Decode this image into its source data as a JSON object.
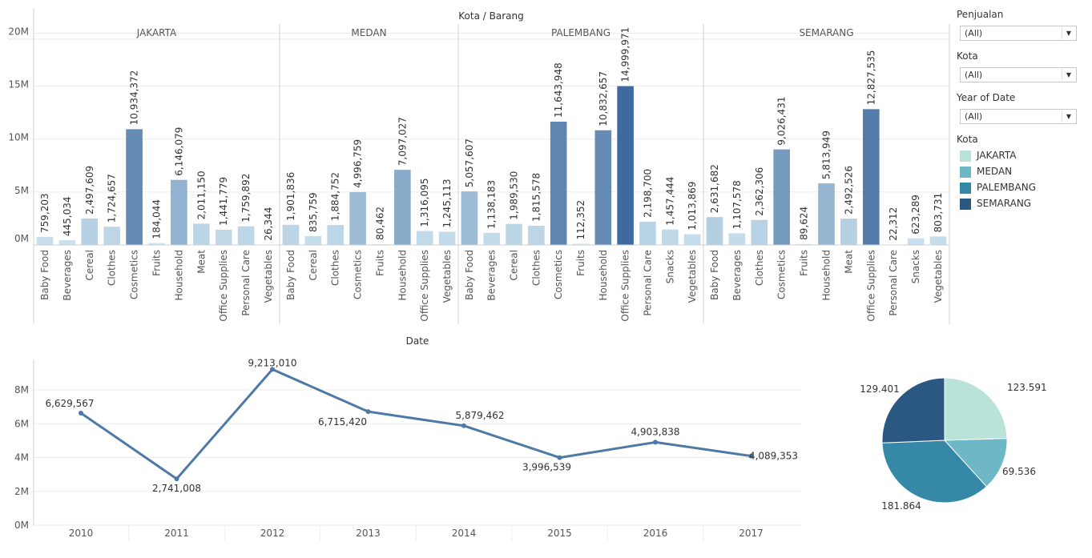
{
  "chart_data": [
    {
      "type": "bar",
      "title": "Kota / Barang",
      "ylim": [
        0,
        22000000
      ],
      "yticks": [
        "0M",
        "5M",
        "10M",
        "15M",
        "20M"
      ],
      "grid": true,
      "panels": [
        {
          "name": "JAKARTA",
          "categories": [
            "Baby Food",
            "Beverages",
            "Cereal",
            "Clothes",
            "Cosmetics",
            "Fruits",
            "Household",
            "Meat",
            "Office Supplies",
            "Personal Care",
            "Vegetables"
          ],
          "values": [
            759203,
            445034,
            2497609,
            1724657,
            10934372,
            184044,
            6146079,
            2011150,
            1441779,
            1759892,
            26344
          ],
          "labels": [
            "759,203",
            "445,034",
            "2,497,609",
            "1,724,657",
            "10,934,372",
            "184,044",
            "6,146,079",
            "2,011,150",
            "1,441,779",
            "1,759,892",
            "26,344"
          ]
        },
        {
          "name": "MEDAN",
          "categories": [
            "Baby Food",
            "Cereal",
            "Clothes",
            "Cosmetics",
            "Fruits",
            "Household",
            "Office Supplies",
            "Vegetables"
          ],
          "values": [
            1901836,
            835759,
            1884752,
            4996759,
            80462,
            7097027,
            1316095,
            1245113
          ],
          "labels": [
            "1,901,836",
            "835,759",
            "1,884,752",
            "4,996,759",
            "80,462",
            "7,097,027",
            "1,316,095",
            "1,245,113"
          ]
        },
        {
          "name": "PALEMBANG",
          "categories": [
            "Baby Food",
            "Beverages",
            "Cereal",
            "Clothes",
            "Cosmetics",
            "Fruits",
            "Household",
            "Office Supplies",
            "Personal Care",
            "Snacks",
            "Vegetables"
          ],
          "values": [
            5057607,
            1138183,
            1989530,
            1815578,
            11643948,
            112352,
            10832657,
            14999971,
            2198700,
            1457444,
            1013869
          ],
          "labels": [
            "5,057,607",
            "1,138,183",
            "1,989,530",
            "1,815,578",
            "11,643,948",
            "112,352",
            "10,832,657",
            "14,999,971",
            "2,198,700",
            "1,457,444",
            "1,013,869"
          ]
        },
        {
          "name": "SEMARANG",
          "categories": [
            "Baby Food",
            "Beverages",
            "Clothes",
            "Cosmetics",
            "Fruits",
            "Household",
            "Meat",
            "Office Supplies",
            "Personal Care",
            "Snacks",
            "Vegetables"
          ],
          "values": [
            2631682,
            1107578,
            2362306,
            9026431,
            89624,
            5813949,
            2492526,
            12827535,
            22312,
            623289,
            803731
          ],
          "labels": [
            "2,631,682",
            "1,107,578",
            "2,362,306",
            "9,026,431",
            "89,624",
            "5,813,949",
            "2,492,526",
            "12,827,535",
            "22,312",
            "623,289",
            "803,731"
          ]
        }
      ]
    },
    {
      "type": "line",
      "title": "Date",
      "x": [
        "2010",
        "2011",
        "2012",
        "2013",
        "2014",
        "2015",
        "2016",
        "2017"
      ],
      "values": [
        6629567,
        2741008,
        9213010,
        6715420,
        5879462,
        3996539,
        4903838,
        4089353
      ],
      "labels": [
        "6,629,567",
        "2,741,008",
        "9,213,010",
        "6,715,420",
        "5,879,462",
        "3,996,539",
        "4,903,838",
        "4,089,353"
      ],
      "ylim": [
        0,
        9800000
      ],
      "yticks": [
        "0M",
        "2M",
        "4M",
        "6M",
        "8M"
      ],
      "color": "#4e79a7"
    },
    {
      "type": "pie",
      "slices": [
        {
          "name": "JAKARTA",
          "value": 123.591,
          "label": "123.591"
        },
        {
          "name": "MEDAN",
          "value": 69.536,
          "label": "69.536"
        },
        {
          "name": "PALEMBANG",
          "value": 181.864,
          "label": "181.864"
        },
        {
          "name": "SEMARANG",
          "value": 129.401,
          "label": "129.401"
        }
      ]
    }
  ],
  "filters": [
    {
      "label": "Penjualan",
      "value": "(All)"
    },
    {
      "label": "Kota",
      "value": "(All)"
    },
    {
      "label": "Year of Date",
      "value": "(All)"
    }
  ],
  "legend": {
    "title": "Kota",
    "items": [
      {
        "name": "JAKARTA",
        "color": "#b9e3d9"
      },
      {
        "name": "MEDAN",
        "color": "#6eb7c6"
      },
      {
        "name": "PALEMBANG",
        "color": "#3589a6"
      },
      {
        "name": "SEMARANG",
        "color": "#2b5783"
      }
    ]
  }
}
